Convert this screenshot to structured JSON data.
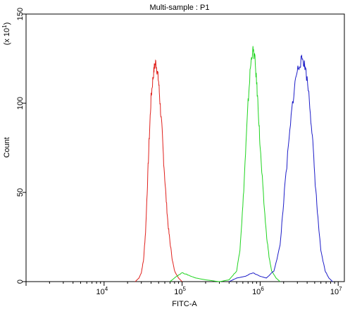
{
  "chart_data": {
    "type": "line",
    "title": "Multi-sample : P1",
    "xlabel": "FITC-A",
    "ylabel": "Count",
    "y_multiplier_base": "(x 10",
    "y_multiplier_exp": "1",
    "y_multiplier_close": ")",
    "x_scale": "log",
    "xlim": [
      1000,
      12000000
    ],
    "ylim": [
      0,
      150
    ],
    "y_ticks": [
      0,
      50,
      100,
      150
    ],
    "x_tick_exponents": [
      4,
      5,
      6,
      7
    ],
    "x_tick_base": "10",
    "grid": false,
    "legend": "none",
    "series": [
      {
        "color": "#e0201c",
        "x": [
          25000,
          28000,
          30000,
          32000,
          34000,
          36000,
          38000,
          40000,
          42000,
          44000,
          46000,
          48000,
          50000,
          52000,
          55000,
          58000,
          62000,
          66000,
          70000,
          75000,
          80000,
          90000,
          100000
        ],
        "y": [
          0,
          2,
          5,
          12,
          28,
          55,
          82,
          103,
          113,
          120,
          123,
          118,
          112,
          101,
          86,
          68,
          48,
          32,
          22,
          12,
          6,
          2,
          0
        ]
      },
      {
        "color": "#1fd41f",
        "x": [
          70000,
          85000,
          100000,
          115000,
          130000,
          150000,
          200000,
          300000,
          400000,
          500000,
          550000,
          600000,
          650000,
          700000,
          750000,
          800000,
          850000,
          900000,
          950000,
          1000000,
          1100000,
          1200000,
          1300000,
          1400000,
          1600000,
          1800000
        ],
        "y": [
          0,
          3,
          5,
          4,
          3,
          2,
          1,
          0,
          1,
          6,
          18,
          42,
          72,
          100,
          120,
          130,
          126,
          112,
          95,
          75,
          48,
          27,
          14,
          6,
          2,
          0
        ]
      },
      {
        "color": "#1c1cc8",
        "x": [
          400000,
          500000,
          650000,
          800000,
          1000000,
          1200000,
          1500000,
          1800000,
          2000000,
          2300000,
          2600000,
          2900000,
          3200000,
          3500000,
          3800000,
          4200000,
          4600000,
          5000000,
          5500000,
          6000000,
          6800000,
          7600000,
          8500000
        ],
        "y": [
          0,
          2,
          3,
          5,
          3,
          2,
          6,
          20,
          45,
          75,
          100,
          116,
          122,
          125,
          120,
          106,
          85,
          60,
          35,
          17,
          6,
          2,
          0
        ]
      }
    ]
  }
}
